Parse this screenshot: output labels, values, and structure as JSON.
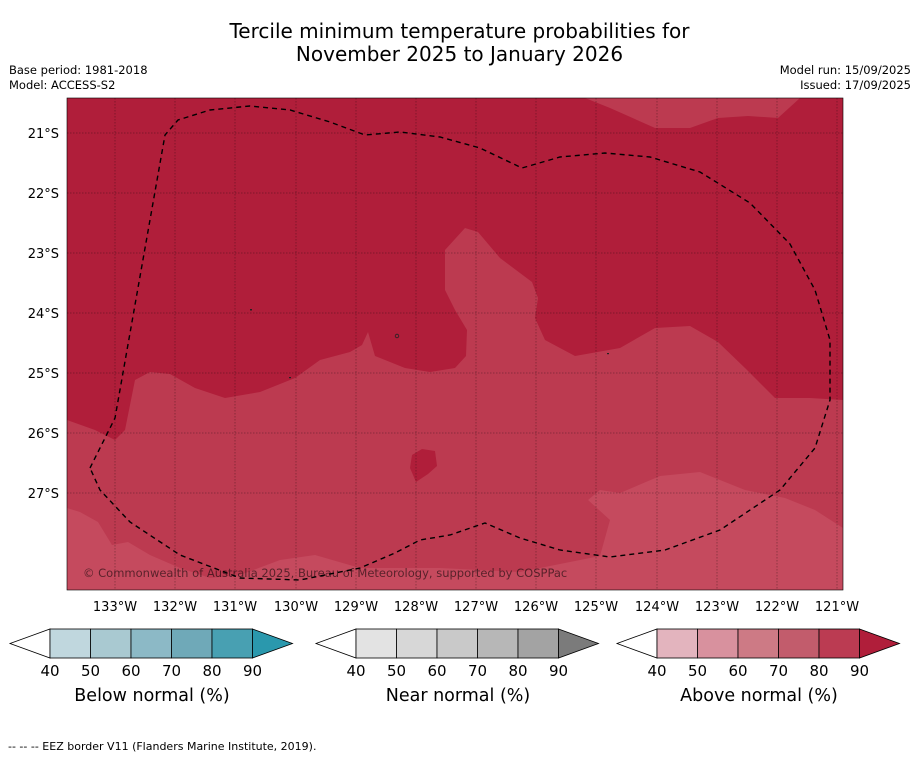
{
  "title": {
    "line1": "Tercile minimum temperature probabilities for",
    "line2": "November 2025 to January 2026"
  },
  "meta": {
    "base_period": "Base period: 1981-2018",
    "model": "Model: ACCESS-S2",
    "model_run": "Model run: 15/09/2025",
    "issued": "Issued: 17/09/2025"
  },
  "map": {
    "lat_labels": [
      "21°S",
      "22°S",
      "23°S",
      "24°S",
      "25°S",
      "26°S",
      "27°S"
    ],
    "lon_labels": [
      "133°W",
      "132°W",
      "131°W",
      "130°W",
      "129°W",
      "128°W",
      "127°W",
      "126°W",
      "125°W",
      "124°W",
      "123°W",
      "122°W",
      "121°W"
    ],
    "copyright": "© Commonwealth of Australia 2025, Bureau of Meteorology, supported by COSPPac",
    "colors": {
      "above_90": "#b01e3a",
      "above_80": "#bc3a50",
      "above_70": "#c54a5e"
    }
  },
  "colorbars": [
    {
      "title": "Below normal (%)",
      "ticks": [
        "40",
        "50",
        "60",
        "70",
        "80",
        "90"
      ],
      "colors": [
        "#c0d7de",
        "#a9c9d1",
        "#8cb9c6",
        "#6fa9b8",
        "#48a0b2",
        "#2a98ad"
      ]
    },
    {
      "title": "Near normal (%)",
      "ticks": [
        "40",
        "50",
        "60",
        "70",
        "80",
        "90"
      ],
      "colors": [
        "#e3e3e3",
        "#d7d7d7",
        "#c9c9c9",
        "#b7b7b7",
        "#a3a3a3",
        "#7b7b7b"
      ]
    },
    {
      "title": "Above normal (%)",
      "ticks": [
        "40",
        "50",
        "60",
        "70",
        "80",
        "90"
      ],
      "colors": [
        "#e3b4be",
        "#d8919e",
        "#cd7a85",
        "#c25c6c",
        "#bb3b52",
        "#b01e3a"
      ]
    }
  ],
  "footer": "--  --  -- EEZ border V11 (Flanders Marine Institute, 2019)."
}
